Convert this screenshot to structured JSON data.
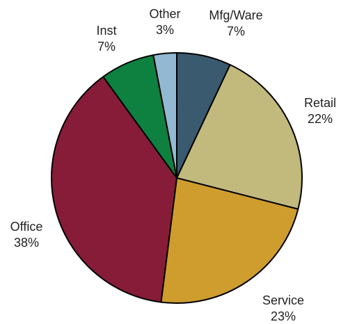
{
  "chart_data": {
    "type": "pie",
    "title": "",
    "start_angle_deg": 0,
    "direction": "clockwise",
    "slices": [
      {
        "label": "Mfg/Ware",
        "value": 7,
        "display": "7%",
        "color": "#3a5a70"
      },
      {
        "label": "Retail",
        "value": 22,
        "display": "22%",
        "color": "#c2b97d"
      },
      {
        "label": "Service",
        "value": 23,
        "display": "23%",
        "color": "#cf9d2d"
      },
      {
        "label": "Office",
        "value": 38,
        "display": "38%",
        "color": "#861c38"
      },
      {
        "label": "Inst",
        "value": 7,
        "display": "7%",
        "color": "#0e8040"
      },
      {
        "label": "Other",
        "value": 3,
        "display": "3%",
        "color": "#93b8d1"
      }
    ]
  }
}
